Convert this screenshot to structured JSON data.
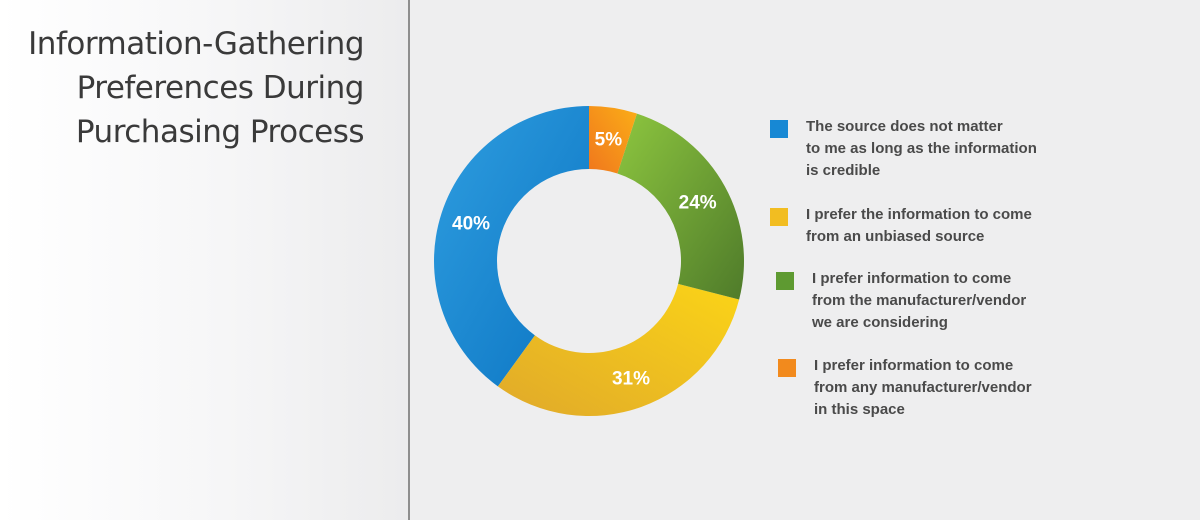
{
  "title_lines": [
    "Information-Gathering",
    "Preferences During",
    "Purchasing Process"
  ],
  "colors": {
    "blue_light": "#2f9ee0",
    "blue_dark": "#0b74c2",
    "yellow_light": "#fbd417",
    "yellow_dark": "#e0a92a",
    "green_light": "#8dc63f",
    "green_dark": "#4f7b2a",
    "orange_light": "#fbae17",
    "orange_dark": "#f0771d"
  },
  "chart_data": {
    "type": "pie",
    "variant": "donut",
    "categories": [
      "The source does not matter to me as long as the information is credible",
      "I prefer the information to come from an unbiased source",
      "I prefer information to come from the manufacturer/vendor we are considering",
      "I prefer information to come from any manufacturer/vendor in this space"
    ],
    "values": [
      40,
      31,
      24,
      5
    ],
    "value_labels": [
      "40%",
      "31%",
      "24%",
      "5%"
    ],
    "legend_placement": "right",
    "legend": [
      {
        "lines": [
          "The source does not matter",
          "to me as long as the information",
          "is credible"
        ],
        "color": "#1788d4"
      },
      {
        "lines": [
          "I prefer the information to come",
          "from an unbiased source"
        ],
        "color": "#f2bd21"
      },
      {
        "lines": [
          "I prefer information to come",
          "from the manufacturer/vendor",
          "we are considering"
        ],
        "color": "#5e9a31"
      },
      {
        "lines": [
          "I prefer information to come",
          "from any manufacturer/vendor",
          "in this space"
        ],
        "color": "#f28a1d"
      }
    ]
  }
}
